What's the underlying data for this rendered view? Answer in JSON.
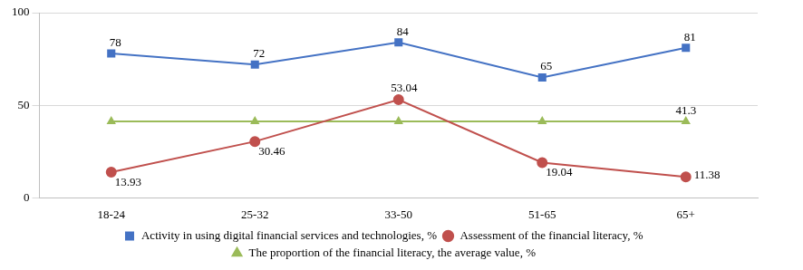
{
  "chart_data": {
    "type": "line",
    "categories": [
      "18-24",
      "25-32",
      "33-50",
      "51-65",
      "65+"
    ],
    "series": [
      {
        "name": "Activity in using digital financial services and technologies, %",
        "color": "#4472c4",
        "marker": "square",
        "values": [
          78,
          72,
          84,
          65,
          81
        ]
      },
      {
        "name": "Assessment of the financial literacy, %",
        "color": "#c0504d",
        "marker": "circle",
        "values": [
          13.93,
          30.46,
          53.04,
          19.04,
          11.38
        ]
      },
      {
        "name": "The proportion of the financial literacy, the average value, %",
        "color": "#9bbb59",
        "marker": "triangle",
        "values": [
          41.3,
          41.3,
          41.3,
          41.3,
          41.3
        ],
        "value_labels": [
          null,
          null,
          null,
          null,
          "41.3"
        ]
      }
    ],
    "ylim": [
      0,
      100
    ],
    "yticks": [
      0,
      50,
      100
    ],
    "grid": true,
    "legend": "bottom",
    "data_labels": true
  }
}
